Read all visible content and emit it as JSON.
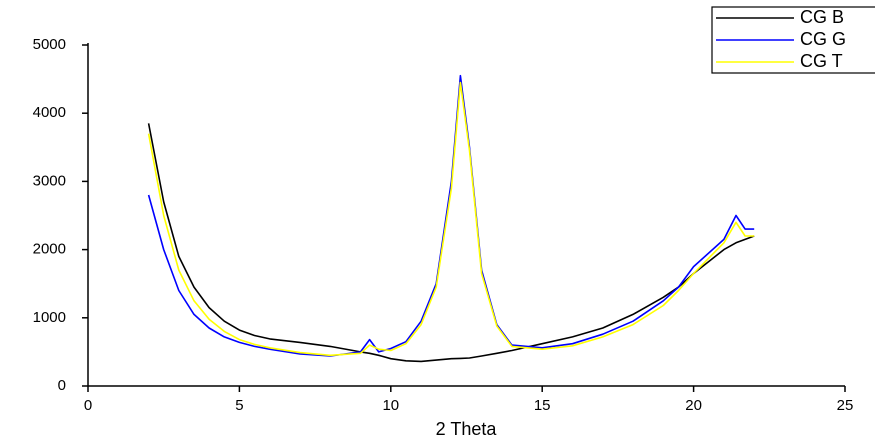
{
  "chart_data": {
    "type": "line",
    "xlabel": "2 Theta",
    "x": [
      2,
      2.5,
      3,
      3.5,
      4,
      4.5,
      5,
      5.5,
      6,
      7,
      8,
      9,
      9.3,
      9.6,
      10,
      10.5,
      11,
      11.5,
      12,
      12.3,
      12.6,
      13,
      13.5,
      14,
      15,
      16,
      17,
      18,
      19,
      19.5,
      20,
      21,
      21.4,
      21.7,
      22
    ],
    "series": [
      {
        "name": "CG B",
        "color": "#000000",
        "values": [
          3850,
          2700,
          1900,
          1450,
          1150,
          950,
          820,
          740,
          690,
          640,
          580,
          500,
          480,
          450,
          400,
          370,
          360,
          380,
          400,
          405,
          410,
          440,
          480,
          520,
          620,
          720,
          850,
          1050,
          1300,
          1450,
          1650,
          2000,
          2100,
          2150,
          2200
        ]
      },
      {
        "name": "CG G",
        "color": "#0000ff",
        "values": [
          2800,
          2000,
          1400,
          1050,
          850,
          720,
          640,
          580,
          540,
          470,
          440,
          500,
          680,
          500,
          550,
          650,
          950,
          1500,
          3000,
          4550,
          3500,
          1700,
          900,
          600,
          560,
          620,
          760,
          950,
          1250,
          1450,
          1750,
          2150,
          2500,
          2300,
          2300
        ]
      },
      {
        "name": "CG T",
        "color": "#ffff00",
        "values": [
          3700,
          2500,
          1700,
          1250,
          980,
          800,
          680,
          610,
          560,
          490,
          450,
          480,
          600,
          540,
          520,
          620,
          900,
          1450,
          2900,
          4450,
          3450,
          1650,
          880,
          580,
          540,
          590,
          720,
          900,
          1180,
          1400,
          1650,
          2100,
          2400,
          2200,
          2200
        ]
      }
    ],
    "xlim": [
      0,
      25
    ],
    "xticks": [
      0,
      5,
      10,
      15,
      20,
      25
    ],
    "ylim": [
      0,
      5000
    ],
    "yticks": [
      0,
      1000,
      2000,
      3000,
      4000,
      5000
    ],
    "grid": false,
    "legend": "upper right"
  }
}
